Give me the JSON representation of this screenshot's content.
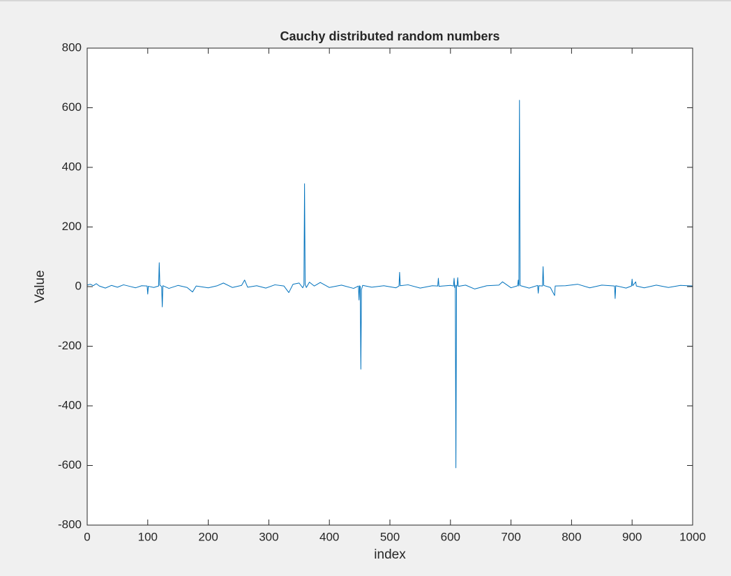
{
  "chart_data": {
    "type": "line",
    "title": "Cauchy distributed random numbers",
    "x_label": "index",
    "y_label": "Value",
    "x": [
      0,
      5,
      10,
      15,
      20,
      30,
      40,
      50,
      60,
      70,
      80,
      90,
      99,
      100,
      101,
      110,
      118,
      119,
      120,
      123,
      124,
      125,
      135,
      150,
      165,
      174,
      180,
      200,
      215,
      225,
      240,
      255,
      260,
      265,
      280,
      295,
      310,
      325,
      333,
      340,
      350,
      356,
      358,
      359,
      360,
      362,
      367,
      375,
      385,
      400,
      420,
      440,
      448,
      449,
      450,
      451,
      452,
      453,
      455,
      470,
      490,
      510,
      515,
      516,
      517,
      530,
      550,
      570,
      579,
      580,
      581,
      600,
      605,
      606,
      607,
      608,
      609,
      610,
      611,
      612,
      613,
      625,
      640,
      660,
      680,
      686,
      700,
      711,
      712,
      713,
      714,
      715,
      716,
      730,
      744,
      745,
      746,
      752,
      753,
      754,
      765,
      772,
      773,
      790,
      810,
      830,
      850,
      871,
      872,
      873,
      890,
      899,
      900,
      901,
      906,
      907,
      920,
      940,
      960,
      980,
      1000
    ],
    "series": [
      {
        "name": "Cauchy",
        "color": "#0072bd",
        "values": [
          5,
          8,
          3,
          10,
          2,
          -5,
          4,
          -2,
          6,
          1,
          -4,
          3,
          2,
          -25,
          1,
          -3,
          2,
          80,
          5,
          0,
          -68,
          3,
          -6,
          4,
          -3,
          -18,
          2,
          -4,
          3,
          12,
          -3,
          4,
          22,
          -2,
          3,
          -5,
          6,
          2,
          -20,
          8,
          12,
          -4,
          5,
          345,
          8,
          -3,
          15,
          2,
          14,
          -3,
          5,
          -6,
          2,
          -45,
          3,
          0,
          -277,
          -10,
          4,
          -2,
          3,
          -4,
          2,
          48,
          3,
          6,
          -5,
          3,
          2,
          28,
          1,
          4,
          2,
          28,
          -3,
          5,
          -608,
          4,
          2,
          30,
          1,
          5,
          -8,
          3,
          5,
          16,
          -4,
          3,
          22,
          2,
          625,
          5,
          3,
          -5,
          4,
          -22,
          3,
          2,
          67,
          4,
          -3,
          -30,
          2,
          3,
          8,
          -4,
          5,
          2,
          -40,
          3,
          -5,
          2,
          25,
          3,
          16,
          2,
          -4,
          5,
          -3,
          4,
          2
        ]
      }
    ],
    "xlim": [
      0,
      1000
    ],
    "ylim": [
      -800,
      800
    ],
    "xticks": [
      0,
      100,
      200,
      300,
      400,
      500,
      600,
      700,
      800,
      900,
      1000
    ],
    "yticks": [
      -800,
      -600,
      -400,
      -200,
      0,
      200,
      400,
      600,
      800
    ]
  }
}
